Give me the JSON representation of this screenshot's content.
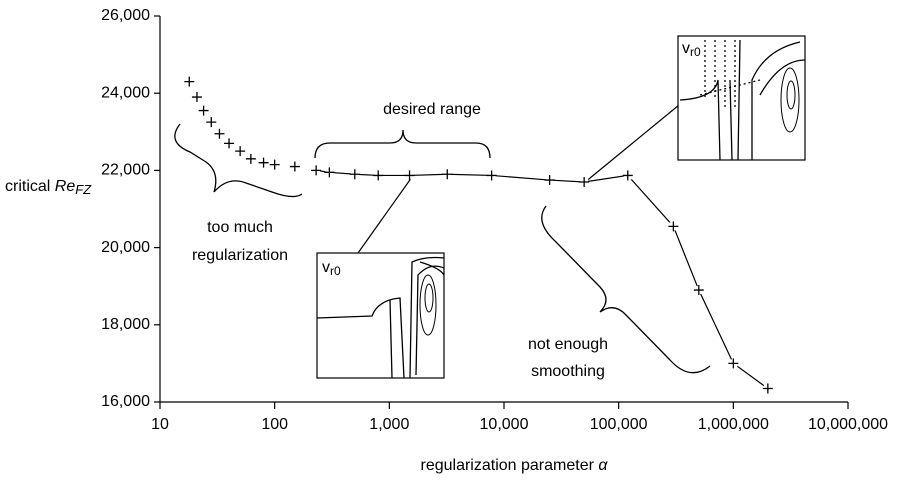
{
  "chart_data": {
    "type": "scatter",
    "xlabel": "regularization parameter",
    "xlabel_symbol": "α",
    "ylabel": "critical",
    "ylabel_symbol": "Re",
    "ylabel_sub": "FZ",
    "xscale": "log",
    "xlim": [
      10,
      10000000
    ],
    "xticks": [
      10,
      100,
      {
        "value": 1000,
        "label": "1,000"
      },
      {
        "value": 10000,
        "label": "10,000"
      },
      {
        "value": 100000,
        "label": "100,000"
      },
      {
        "value": 1000000,
        "label": "1,000,000"
      },
      {
        "value": 10000000,
        "label": "10,000,000"
      }
    ],
    "ylim": [
      16000,
      26000
    ],
    "yticks": [
      {
        "value": 16000,
        "label": "16,000"
      },
      {
        "value": 18000,
        "label": "18,000"
      },
      {
        "value": 20000,
        "label": "20,000"
      },
      {
        "value": 22000,
        "label": "22,000"
      },
      {
        "value": 24000,
        "label": "24,000"
      },
      {
        "value": 26000,
        "label": "26,000"
      }
    ],
    "color": "#000000",
    "series": [
      {
        "line": false,
        "x": [
          18,
          21,
          24,
          28,
          33,
          40,
          50,
          62,
          80,
          100,
          150
        ],
        "values": [
          24300,
          23900,
          23550,
          23250,
          22950,
          22700,
          22500,
          22300,
          22200,
          22150,
          22100
        ]
      },
      {
        "line": true,
        "x": [
          230,
          300,
          500,
          800,
          1500,
          3200,
          7800,
          25000,
          50000,
          120000,
          300000,
          500000,
          1000000,
          2000000
        ],
        "values": [
          22000,
          21950,
          21900,
          21870,
          21870,
          21900,
          21870,
          21750,
          21700,
          21870,
          20550,
          18900,
          17000,
          16350
        ]
      }
    ],
    "annotations": {
      "desired": "desired range",
      "too_much": [
        "too much",
        "regularization"
      ],
      "not_enough": [
        "not enough",
        "smoothing"
      ],
      "inset_label": "v",
      "inset_sub": "r0"
    }
  }
}
